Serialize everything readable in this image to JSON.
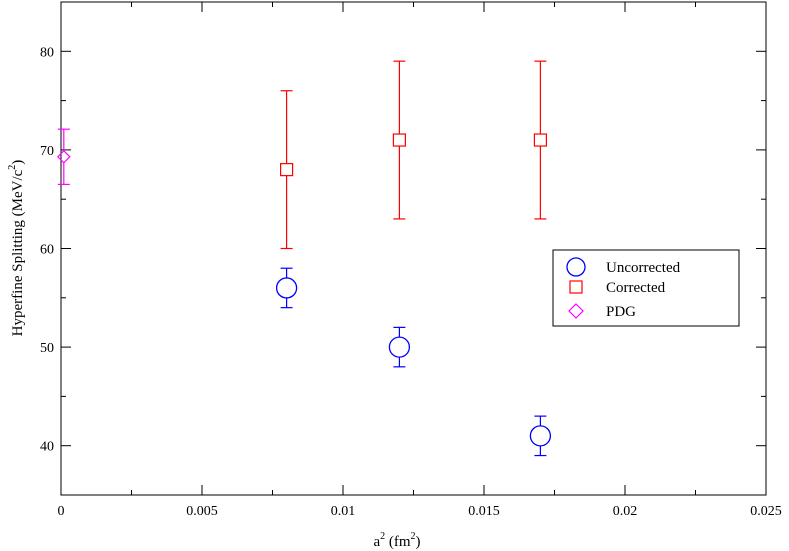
{
  "chart_data": {
    "type": "scatter",
    "title": "",
    "xlabel": {
      "base": "a",
      "sup": "2",
      "unit_open": " (fm",
      "unit_sup": "2",
      "unit_close": ")"
    },
    "ylabel": {
      "text": "Hyperfine Splitting (MeV/c",
      "sup": "2",
      "close": ")"
    },
    "xlim": [
      0,
      0.025
    ],
    "ylim": [
      35,
      85
    ],
    "xticks": [
      0,
      0.005,
      0.01,
      0.015,
      0.02,
      0.025
    ],
    "xtick_labels": [
      "0",
      "0.005",
      "0.01",
      "0.015",
      "0.02",
      "0.025"
    ],
    "yticks": [
      40,
      50,
      60,
      70,
      80
    ],
    "ytick_labels": [
      "40",
      "50",
      "60",
      "70",
      "80"
    ],
    "grid": false,
    "legend_position": "right",
    "series": [
      {
        "name": "Uncorrected",
        "marker": "circle",
        "color": "#0000ff",
        "points": [
          {
            "x": 0.008,
            "y": 56,
            "err": 2
          },
          {
            "x": 0.012,
            "y": 50,
            "err": 2
          },
          {
            "x": 0.017,
            "y": 41,
            "err": 2
          }
        ]
      },
      {
        "name": "Corrected",
        "marker": "square",
        "color": "#ff0000",
        "points": [
          {
            "x": 0.008,
            "y": 68,
            "err": 8
          },
          {
            "x": 0.012,
            "y": 71,
            "err": 8
          },
          {
            "x": 0.017,
            "y": 71,
            "err": 8
          }
        ]
      },
      {
        "name": "PDG",
        "marker": "diamond",
        "color": "#ff00ff",
        "points": [
          {
            "x": 0.0001,
            "y": 69.3,
            "err": 2.8
          }
        ]
      }
    ]
  }
}
